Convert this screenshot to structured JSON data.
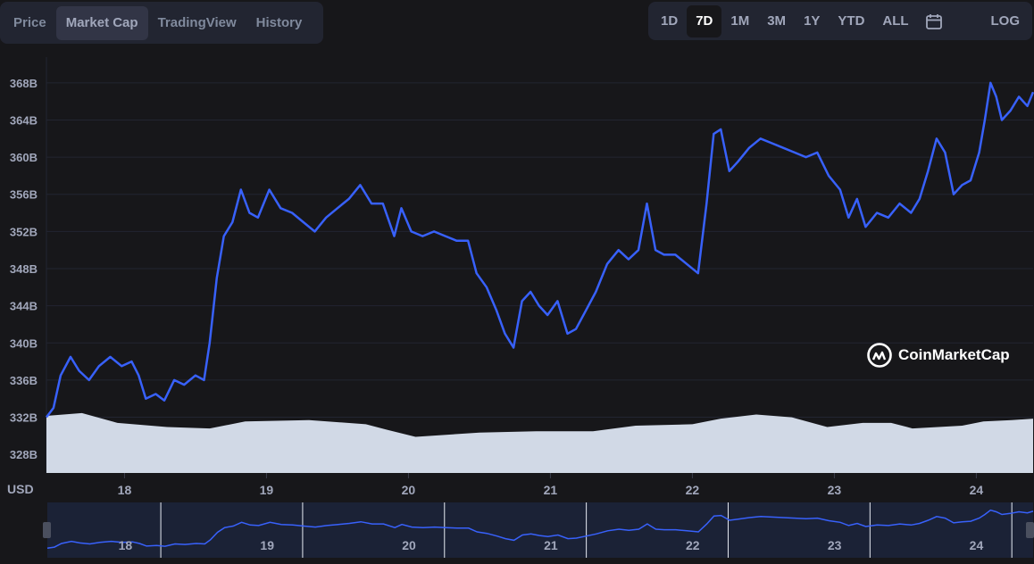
{
  "tabs": [
    {
      "label": "Price",
      "active": false
    },
    {
      "label": "Market Cap",
      "active": true
    },
    {
      "label": "TradingView",
      "active": false
    },
    {
      "label": "History",
      "active": false
    }
  ],
  "ranges": [
    {
      "label": "1D",
      "active": false
    },
    {
      "label": "7D",
      "active": true
    },
    {
      "label": "1M",
      "active": false
    },
    {
      "label": "3M",
      "active": false
    },
    {
      "label": "1Y",
      "active": false
    },
    {
      "label": "YTD",
      "active": false
    },
    {
      "label": "ALL",
      "active": false
    }
  ],
  "log_label": "LOG",
  "calendar_icon": "calendar-icon",
  "watermark": "CoinMarketCap",
  "currency": "USD",
  "colors": {
    "line": "#3861fb",
    "volume": "#d1d9e6",
    "grid": "#222531",
    "navigator_bg": "#1b2236"
  },
  "chart_data": {
    "type": "line",
    "title": "",
    "xlabel": "",
    "ylabel": "",
    "x_ticks": [
      "18",
      "19",
      "20",
      "21",
      "22",
      "23",
      "24"
    ],
    "y_ticks": [
      "328B",
      "332B",
      "336B",
      "340B",
      "344B",
      "348B",
      "352B",
      "356B",
      "360B",
      "364B",
      "368B"
    ],
    "ylim": [
      326,
      370
    ],
    "xlim": [
      17.45,
      24.4
    ],
    "grid": true,
    "series": [
      {
        "type": "line",
        "points": [
          [
            17.45,
            332.0
          ],
          [
            17.5,
            333.0
          ],
          [
            17.55,
            336.5
          ],
          [
            17.62,
            338.5
          ],
          [
            17.68,
            337.0
          ],
          [
            17.75,
            336.0
          ],
          [
            17.82,
            337.5
          ],
          [
            17.9,
            338.5
          ],
          [
            17.98,
            337.5
          ],
          [
            18.05,
            338.0
          ],
          [
            18.1,
            336.5
          ],
          [
            18.15,
            334.0
          ],
          [
            18.22,
            334.5
          ],
          [
            18.28,
            333.8
          ],
          [
            18.35,
            336.0
          ],
          [
            18.42,
            335.5
          ],
          [
            18.5,
            336.5
          ],
          [
            18.56,
            336.0
          ],
          [
            18.6,
            340.0
          ],
          [
            18.65,
            347.0
          ],
          [
            18.7,
            351.5
          ],
          [
            18.76,
            353.0
          ],
          [
            18.82,
            356.5
          ],
          [
            18.88,
            354.0
          ],
          [
            18.94,
            353.5
          ],
          [
            19.02,
            356.5
          ],
          [
            19.1,
            354.5
          ],
          [
            19.18,
            354.0
          ],
          [
            19.26,
            353.0
          ],
          [
            19.34,
            352.0
          ],
          [
            19.42,
            353.5
          ],
          [
            19.5,
            354.5
          ],
          [
            19.58,
            355.5
          ],
          [
            19.66,
            357.0
          ],
          [
            19.74,
            355.0
          ],
          [
            19.82,
            355.0
          ],
          [
            19.9,
            351.5
          ],
          [
            19.95,
            354.5
          ],
          [
            20.02,
            352.0
          ],
          [
            20.1,
            351.5
          ],
          [
            20.18,
            352.0
          ],
          [
            20.26,
            351.5
          ],
          [
            20.34,
            351.0
          ],
          [
            20.42,
            351.0
          ],
          [
            20.48,
            347.5
          ],
          [
            20.55,
            346.0
          ],
          [
            20.62,
            343.5
          ],
          [
            20.68,
            341.0
          ],
          [
            20.74,
            339.5
          ],
          [
            20.8,
            344.5
          ],
          [
            20.86,
            345.5
          ],
          [
            20.92,
            344.0
          ],
          [
            20.98,
            343.0
          ],
          [
            21.05,
            344.5
          ],
          [
            21.12,
            341.0
          ],
          [
            21.18,
            341.5
          ],
          [
            21.25,
            343.5
          ],
          [
            21.32,
            345.5
          ],
          [
            21.4,
            348.5
          ],
          [
            21.48,
            350.0
          ],
          [
            21.55,
            349.0
          ],
          [
            21.62,
            350.0
          ],
          [
            21.68,
            355.0
          ],
          [
            21.74,
            350.0
          ],
          [
            21.8,
            349.5
          ],
          [
            21.88,
            349.5
          ],
          [
            21.96,
            348.5
          ],
          [
            22.04,
            347.5
          ],
          [
            22.1,
            355.0
          ],
          [
            22.15,
            362.5
          ],
          [
            22.2,
            363.0
          ],
          [
            22.26,
            358.5
          ],
          [
            22.32,
            359.5
          ],
          [
            22.4,
            361.0
          ],
          [
            22.48,
            362.0
          ],
          [
            22.56,
            361.5
          ],
          [
            22.64,
            361.0
          ],
          [
            22.72,
            360.5
          ],
          [
            22.8,
            360.0
          ],
          [
            22.88,
            360.5
          ],
          [
            22.96,
            358.0
          ],
          [
            23.04,
            356.5
          ],
          [
            23.1,
            353.5
          ],
          [
            23.16,
            355.5
          ],
          [
            23.22,
            352.5
          ],
          [
            23.3,
            354.0
          ],
          [
            23.38,
            353.5
          ],
          [
            23.46,
            355.0
          ],
          [
            23.54,
            354.0
          ],
          [
            23.6,
            355.5
          ],
          [
            23.66,
            358.5
          ],
          [
            23.72,
            362.0
          ],
          [
            23.78,
            360.5
          ],
          [
            23.84,
            356.0
          ],
          [
            23.9,
            357.0
          ],
          [
            23.96,
            357.5
          ],
          [
            24.02,
            360.5
          ],
          [
            24.06,
            364.0
          ],
          [
            24.1,
            368.0
          ],
          [
            24.14,
            366.5
          ],
          [
            24.18,
            364.0
          ],
          [
            24.24,
            365.0
          ],
          [
            24.3,
            366.5
          ],
          [
            24.36,
            365.5
          ],
          [
            24.4,
            367.0
          ]
        ]
      }
    ],
    "volume": {
      "type": "area",
      "relative_levels": [
        [
          17.45,
          0.82
        ],
        [
          17.7,
          0.86
        ],
        [
          17.95,
          0.72
        ],
        [
          18.3,
          0.66
        ],
        [
          18.6,
          0.64
        ],
        [
          18.85,
          0.74
        ],
        [
          19.3,
          0.76
        ],
        [
          19.7,
          0.7
        ],
        [
          19.85,
          0.62
        ],
        [
          20.05,
          0.52
        ],
        [
          20.5,
          0.58
        ],
        [
          20.9,
          0.6
        ],
        [
          21.3,
          0.6
        ],
        [
          21.6,
          0.68
        ],
        [
          22.0,
          0.7
        ],
        [
          22.2,
          0.78
        ],
        [
          22.45,
          0.84
        ],
        [
          22.7,
          0.8
        ],
        [
          22.95,
          0.66
        ],
        [
          23.2,
          0.72
        ],
        [
          23.4,
          0.72
        ],
        [
          23.55,
          0.64
        ],
        [
          23.9,
          0.68
        ],
        [
          24.05,
          0.74
        ],
        [
          24.25,
          0.76
        ],
        [
          24.4,
          0.78
        ]
      ]
    },
    "navigator_ticks": [
      "18",
      "19",
      "20",
      "21",
      "22",
      "23",
      "24"
    ]
  }
}
